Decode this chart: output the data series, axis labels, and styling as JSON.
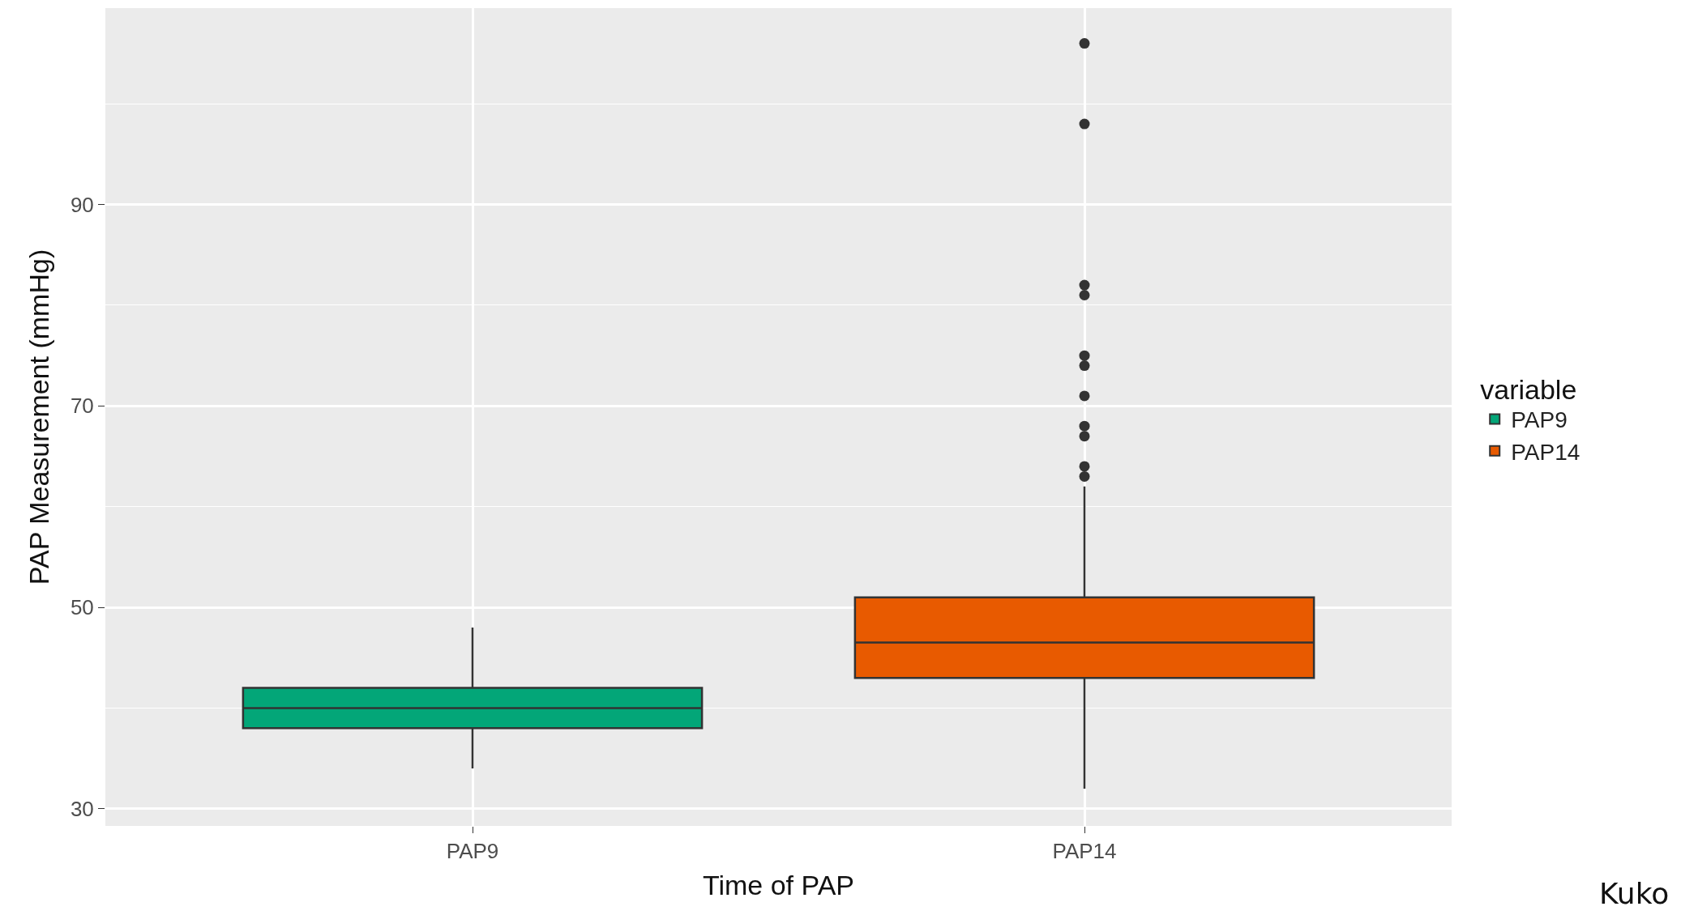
{
  "chart_data": {
    "type": "box",
    "xlabel": "Time of PAP",
    "ylabel": "PAP Measurement (mmHg)",
    "legend_title": "variable",
    "categories": [
      "PAP9",
      "PAP14"
    ],
    "series": [
      {
        "name": "PAP9",
        "color": "#03a678",
        "boxes": [
          {
            "low": 34,
            "q1": 38,
            "median": 40,
            "q3": 42,
            "high": 48
          },
          null
        ]
      },
      {
        "name": "PAP14",
        "color": "#e85a00",
        "boxes": [
          null,
          {
            "low": 32,
            "q1": 43,
            "median": 46.5,
            "q3": 51,
            "high": 62,
            "outliers": [
              106,
              98,
              82,
              81,
              75,
              74,
              71,
              68,
              67,
              64,
              63
            ]
          }
        ]
      }
    ],
    "ylim": [
      28.3,
      109.5
    ],
    "yticks": [
      30,
      50,
      70,
      90
    ],
    "grid": true,
    "legend": "right",
    "annotations": [
      "Kuko"
    ]
  }
}
